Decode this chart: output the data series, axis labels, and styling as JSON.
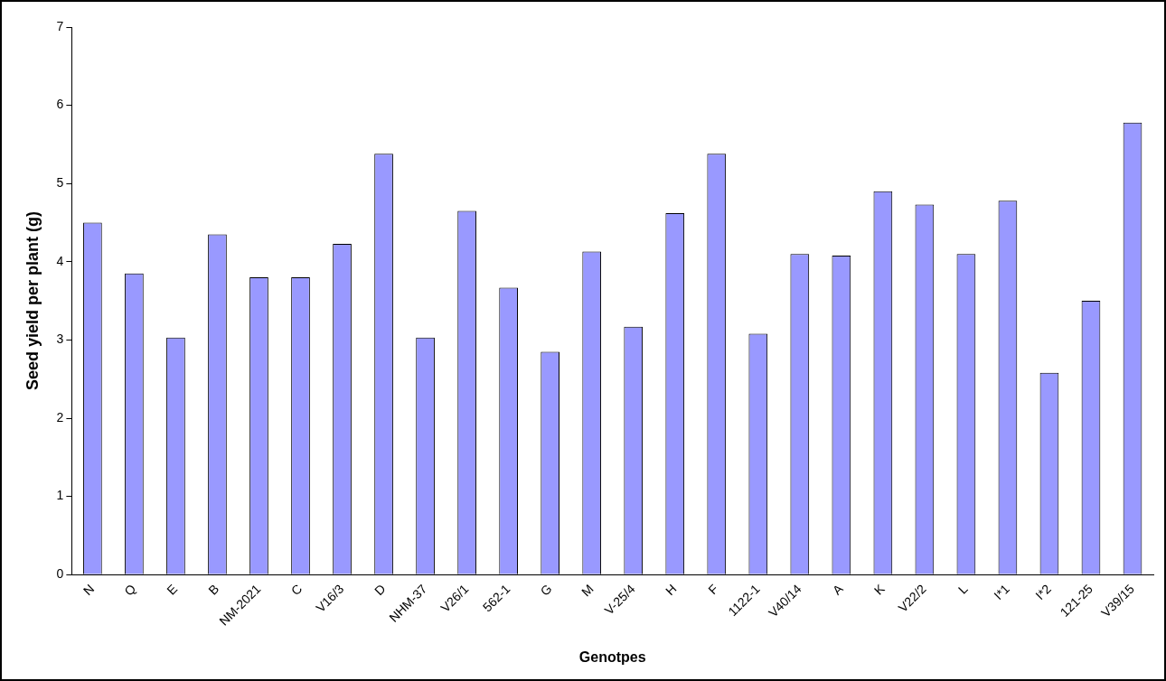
{
  "chart_data": {
    "type": "bar",
    "xlabel": "Genotpes",
    "ylabel": "Seed yield per plant (g)",
    "categories": [
      "N",
      "Q",
      "E",
      "B",
      "NM-2021",
      "C",
      "V16/3",
      "D",
      "NHM-37",
      "V26/1",
      "562-1",
      "G",
      "M",
      "V-25/4",
      "H",
      "F",
      "1122-1",
      "V40/14",
      "A",
      "K",
      "V22/2",
      "L",
      "I*1",
      "I*2",
      "121-25",
      "V39/15"
    ],
    "values": [
      4.5,
      3.85,
      3.03,
      4.35,
      3.8,
      3.8,
      4.23,
      5.38,
      3.03,
      4.65,
      3.67,
      2.85,
      4.13,
      3.17,
      4.62,
      5.38,
      3.08,
      4.1,
      4.08,
      4.9,
      4.73,
      4.1,
      4.78,
      2.58,
      3.5,
      5.78
    ],
    "color": "#9999ff",
    "ylim": [
      0,
      7
    ],
    "yticks": [
      0,
      1,
      2,
      3,
      4,
      5,
      6,
      7
    ],
    "grid": false,
    "legend": false
  }
}
